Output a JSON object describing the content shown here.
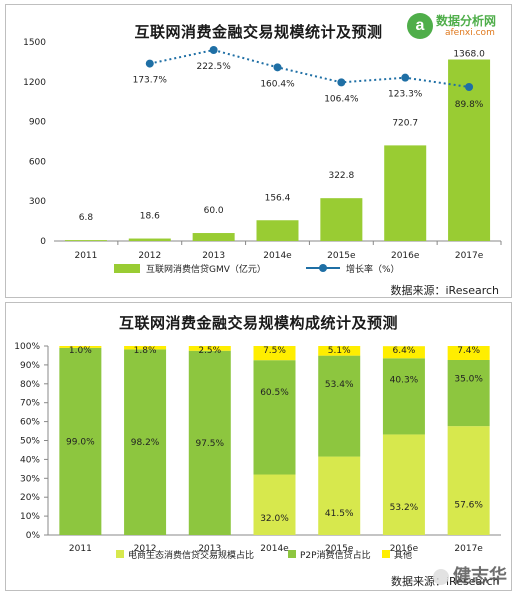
{
  "chart_data": [
    {
      "type": "bar",
      "title": "互联网消费金融交易规模统计及预测",
      "categories": [
        "2011",
        "2012",
        "2013",
        "2014e",
        "2015e",
        "2016e",
        "2017e"
      ],
      "series": [
        {
          "name": "互联网消费信贷GMV（亿元）",
          "type": "bar",
          "values": [
            6.8,
            18.6,
            60.0,
            156.4,
            322.8,
            720.7,
            1368.0
          ],
          "labels": [
            "6.8",
            "18.6",
            "60.0",
            "156.4",
            "322.8",
            "720.7",
            "1368.0"
          ]
        },
        {
          "name": "增长率（%）",
          "type": "line",
          "values": [
            null,
            173.7,
            222.5,
            160.4,
            106.4,
            123.3,
            89.8
          ],
          "labels": [
            "",
            "173.7%",
            "222.5%",
            "160.4%",
            "106.4%",
            "123.3%",
            "89.8%"
          ]
        }
      ],
      "ylim": [
        0,
        1500
      ],
      "yticks": [
        "0",
        "300",
        "600",
        "900",
        "1200",
        "1500"
      ],
      "source": "数据来源：iResearch",
      "colors": {
        "bar": "#99cc33",
        "line": "#1f6fa5"
      }
    },
    {
      "type": "bar",
      "stacked": true,
      "title": "互联网消费金融交易规模构成统计及预测",
      "categories": [
        "2011",
        "2012",
        "2013",
        "2014e",
        "2015e",
        "2016e",
        "2017e"
      ],
      "series": [
        {
          "name": "电商生态消费信贷交易规模占比",
          "values": [
            0,
            0,
            0,
            32.0,
            41.5,
            53.2,
            57.6
          ],
          "labels": [
            "",
            "",
            "",
            "32.0%",
            "41.5%",
            "53.2%",
            "57.6%"
          ]
        },
        {
          "name": "P2P消费信贷占比",
          "values": [
            99.0,
            98.2,
            97.5,
            60.5,
            53.4,
            40.3,
            35.0
          ],
          "labels": [
            "99.0%",
            "98.2%",
            "97.5%",
            "60.5%",
            "53.4%",
            "40.3%",
            "35.0%"
          ]
        },
        {
          "name": "其他",
          "values": [
            1.0,
            1.8,
            2.5,
            7.5,
            5.1,
            6.4,
            7.4
          ],
          "labels": [
            "1.0%",
            "1.8%",
            "2.5%",
            "7.5%",
            "5.1%",
            "6.4%",
            "7.4%"
          ]
        }
      ],
      "ylim": [
        0,
        100
      ],
      "yticks": [
        "0%",
        "10%",
        "20%",
        "30%",
        "40%",
        "50%",
        "60%",
        "70%",
        "80%",
        "90%",
        "100%"
      ],
      "source": "数据来源：iResearch",
      "colors": {
        "ecommerce": "#d7e84d",
        "p2p": "#8dc63f",
        "other": "#ffee00"
      }
    }
  ],
  "logo": {
    "name": "数据分析网",
    "url": "afenxi.com",
    "mark": "a"
  },
  "watermark": "健志华"
}
